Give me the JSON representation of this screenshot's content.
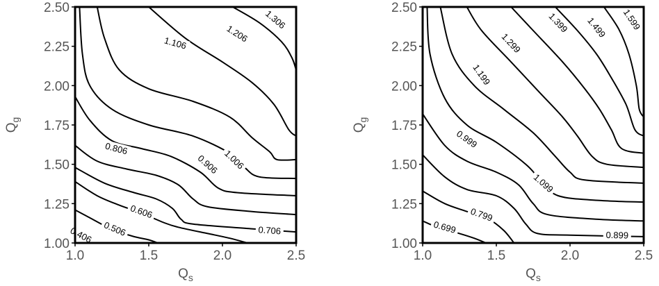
{
  "chart_data": [
    {
      "type": "contour",
      "xlabel": "Q",
      "xlabel_sub": "s",
      "ylabel": "Q",
      "ylabel_sub": "g",
      "xlim": [
        1.0,
        2.5
      ],
      "ylim": [
        1.0,
        2.5
      ],
      "x_ticks": [
        "1.0",
        "1.5",
        "2.0",
        "2.5"
      ],
      "y_ticks": [
        "1.00",
        "1.25",
        "1.50",
        "1.75",
        "2.00",
        "2.25",
        "2.50"
      ],
      "contours": [
        {
          "level": "0.406",
          "points": [
            [
              1.0,
              1.08
            ],
            [
              1.02,
              1.06
            ],
            [
              1.06,
              1.04
            ],
            [
              1.09,
              1.02
            ],
            [
              1.12,
              1.0
            ]
          ],
          "label_at": [
            1.04,
            1.05
          ]
        },
        {
          "level": "0.506",
          "points": [
            [
              1.0,
              1.21
            ],
            [
              1.1,
              1.16
            ],
            [
              1.2,
              1.11
            ],
            [
              1.3,
              1.07
            ],
            [
              1.4,
              1.04
            ],
            [
              1.5,
              1.02
            ],
            [
              1.56,
              1.0
            ]
          ],
          "label_at": [
            1.27,
            1.09
          ]
        },
        {
          "level": "0.606",
          "points": [
            [
              1.0,
              1.39
            ],
            [
              1.15,
              1.3
            ],
            [
              1.3,
              1.24
            ],
            [
              1.45,
              1.19
            ],
            [
              1.6,
              1.13
            ],
            [
              1.7,
              1.1
            ],
            [
              1.9,
              1.06
            ],
            [
              2.05,
              1.03
            ],
            [
              2.17,
              1.0
            ]
          ],
          "label_at": [
            1.45,
            1.2
          ]
        },
        {
          "level": "0.706",
          "points": [
            [
              1.0,
              1.48
            ],
            [
              1.2,
              1.38
            ],
            [
              1.4,
              1.32
            ],
            [
              1.55,
              1.28
            ],
            [
              1.66,
              1.22
            ],
            [
              1.72,
              1.15
            ],
            [
              1.8,
              1.12
            ],
            [
              2.2,
              1.09
            ],
            [
              2.5,
              1.07
            ]
          ],
          "label_at": [
            2.32,
            1.08
          ]
        },
        {
          "level": "0.806",
          "points": [
            [
              1.0,
              1.62
            ],
            [
              1.15,
              1.52
            ],
            [
              1.35,
              1.47
            ],
            [
              1.55,
              1.43
            ],
            [
              1.7,
              1.37
            ],
            [
              1.8,
              1.28
            ],
            [
              1.9,
              1.23
            ],
            [
              2.2,
              1.2
            ],
            [
              2.5,
              1.18
            ]
          ],
          "label_at": [
            1.28,
            1.6
          ]
        },
        {
          "level": "0.906",
          "points": [
            [
              1.0,
              1.93
            ],
            [
              1.1,
              1.78
            ],
            [
              1.25,
              1.65
            ],
            [
              1.45,
              1.6
            ],
            [
              1.65,
              1.55
            ],
            [
              1.85,
              1.45
            ],
            [
              1.97,
              1.35
            ],
            [
              2.1,
              1.32
            ],
            [
              2.5,
              1.3
            ]
          ],
          "label_at": [
            1.9,
            1.5
          ]
        },
        {
          "level": "1.006",
          "points": [
            [
              1.03,
              2.5
            ],
            [
              1.05,
              2.2
            ],
            [
              1.1,
              2.0
            ],
            [
              1.25,
              1.85
            ],
            [
              1.5,
              1.75
            ],
            [
              1.8,
              1.68
            ],
            [
              2.05,
              1.57
            ],
            [
              2.15,
              1.48
            ],
            [
              2.25,
              1.42
            ],
            [
              2.5,
              1.41
            ]
          ],
          "label_at": [
            2.08,
            1.53
          ]
        },
        {
          "level": "1.106",
          "points": [
            [
              1.15,
              2.5
            ],
            [
              1.2,
              2.3
            ],
            [
              1.3,
              2.1
            ],
            [
              1.5,
              1.98
            ],
            [
              1.8,
              1.9
            ],
            [
              2.05,
              1.8
            ],
            [
              2.2,
              1.67
            ],
            [
              2.32,
              1.58
            ],
            [
              2.37,
              1.53
            ],
            [
              2.5,
              1.53
            ]
          ],
          "label_at": [
            1.68,
            2.27
          ]
        },
        {
          "level": "1.206",
          "points": [
            [
              1.5,
              2.5
            ],
            [
              1.75,
              2.3
            ],
            [
              2.0,
              2.15
            ],
            [
              2.2,
              2.02
            ],
            [
              2.35,
              1.88
            ],
            [
              2.45,
              1.72
            ],
            [
              2.5,
              1.68
            ]
          ],
          "label_at": [
            2.1,
            2.33
          ]
        },
        {
          "level": "1.306",
          "points": [
            [
              2.07,
              2.5
            ],
            [
              2.25,
              2.4
            ],
            [
              2.4,
              2.28
            ],
            [
              2.47,
              2.18
            ],
            [
              2.5,
              2.1
            ]
          ],
          "label_at": [
            2.36,
            2.42
          ]
        }
      ]
    },
    {
      "type": "contour",
      "xlabel": "Q",
      "xlabel_sub": "s",
      "ylabel": "Q",
      "ylabel_sub": "g",
      "xlim": [
        1.0,
        2.5
      ],
      "ylim": [
        1.0,
        2.5
      ],
      "x_ticks": [
        "1.0",
        "1.5",
        "2.0",
        "2.5"
      ],
      "y_ticks": [
        "1.00",
        "1.25",
        "1.50",
        "1.75",
        "2.00",
        "2.25",
        "2.50"
      ],
      "contours": [
        {
          "level": "0.699",
          "points": [
            [
              1.0,
              1.14
            ],
            [
              1.1,
              1.1
            ],
            [
              1.25,
              1.06
            ],
            [
              1.35,
              1.03
            ],
            [
              1.43,
              1.0
            ]
          ],
          "label_at": [
            1.15,
            1.1
          ]
        },
        {
          "level": "0.799",
          "points": [
            [
              1.0,
              1.33
            ],
            [
              1.15,
              1.25
            ],
            [
              1.3,
              1.2
            ],
            [
              1.45,
              1.15
            ],
            [
              1.55,
              1.08
            ],
            [
              1.62,
              1.0
            ]
          ],
          "label_at": [
            1.4,
            1.18
          ]
        },
        {
          "level": "0.899",
          "points": [
            [
              1.0,
              1.56
            ],
            [
              1.15,
              1.42
            ],
            [
              1.3,
              1.34
            ],
            [
              1.5,
              1.3
            ],
            [
              1.62,
              1.22
            ],
            [
              1.7,
              1.12
            ],
            [
              1.78,
              1.06
            ],
            [
              2.0,
              1.05
            ],
            [
              2.5,
              1.04
            ]
          ],
          "label_at": [
            2.32,
            1.05
          ]
        },
        {
          "level": "0.999",
          "points": [
            [
              1.0,
              1.82
            ],
            [
              1.15,
              1.62
            ],
            [
              1.3,
              1.52
            ],
            [
              1.5,
              1.45
            ],
            [
              1.65,
              1.37
            ],
            [
              1.75,
              1.25
            ],
            [
              1.85,
              1.18
            ],
            [
              2.2,
              1.15
            ],
            [
              2.5,
              1.14
            ]
          ],
          "label_at": [
            1.3,
            1.66
          ]
        },
        {
          "level": "1.099",
          "points": [
            [
              1.03,
              2.5
            ],
            [
              1.05,
              2.2
            ],
            [
              1.15,
              1.92
            ],
            [
              1.3,
              1.75
            ],
            [
              1.5,
              1.64
            ],
            [
              1.7,
              1.5
            ],
            [
              1.8,
              1.4
            ],
            [
              1.92,
              1.3
            ],
            [
              2.2,
              1.27
            ],
            [
              2.5,
              1.26
            ]
          ],
          "label_at": [
            1.82,
            1.38
          ]
        },
        {
          "level": "1.199",
          "points": [
            [
              1.12,
              2.5
            ],
            [
              1.2,
              2.2
            ],
            [
              1.35,
              2.0
            ],
            [
              1.55,
              1.85
            ],
            [
              1.75,
              1.7
            ],
            [
              1.9,
              1.55
            ],
            [
              2.0,
              1.45
            ],
            [
              2.1,
              1.4
            ],
            [
              2.5,
              1.38
            ]
          ],
          "label_at": [
            1.4,
            2.07
          ]
        },
        {
          "level": "1.299",
          "points": [
            [
              1.3,
              2.5
            ],
            [
              1.4,
              2.35
            ],
            [
              1.6,
              2.15
            ],
            [
              1.8,
              1.95
            ],
            [
              1.95,
              1.8
            ],
            [
              2.05,
              1.68
            ],
            [
              2.15,
              1.55
            ],
            [
              2.25,
              1.5
            ],
            [
              2.5,
              1.48
            ]
          ],
          "label_at": [
            1.6,
            2.27
          ]
        },
        {
          "level": "1.399",
          "points": [
            [
              1.6,
              2.5
            ],
            [
              1.75,
              2.35
            ],
            [
              1.95,
              2.15
            ],
            [
              2.1,
              1.98
            ],
            [
              2.2,
              1.85
            ],
            [
              2.28,
              1.72
            ],
            [
              2.35,
              1.6
            ],
            [
              2.5,
              1.57
            ]
          ],
          "label_at": [
            1.92,
            2.4
          ]
        },
        {
          "level": "1.499",
          "points": [
            [
              1.9,
              2.5
            ],
            [
              2.05,
              2.35
            ],
            [
              2.18,
              2.2
            ],
            [
              2.28,
              2.05
            ],
            [
              2.38,
              1.88
            ],
            [
              2.44,
              1.72
            ],
            [
              2.5,
              1.68
            ]
          ],
          "label_at": [
            2.18,
            2.37
          ]
        },
        {
          "level": "1.599",
          "points": [
            [
              2.23,
              2.5
            ],
            [
              2.33,
              2.36
            ],
            [
              2.4,
              2.2
            ],
            [
              2.45,
              2.0
            ],
            [
              2.47,
              1.85
            ],
            [
              2.5,
              1.8
            ]
          ],
          "label_at": [
            2.42,
            2.42
          ]
        }
      ]
    }
  ]
}
